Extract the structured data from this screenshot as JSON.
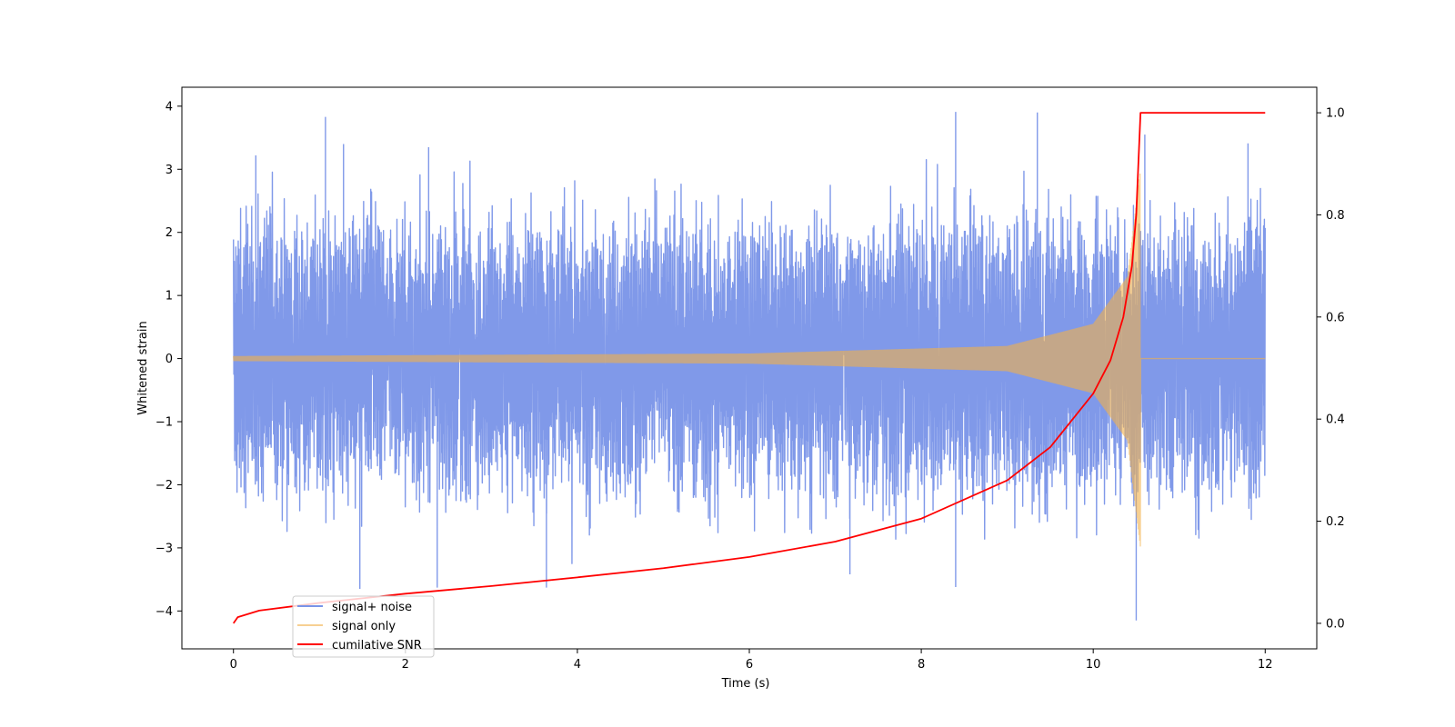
{
  "chart_data": {
    "type": "line",
    "title": "",
    "xlabel": "Time (s)",
    "ylabel": "Whitened strain",
    "ylabel_right": "",
    "xlim": [
      -0.6,
      12.6
    ],
    "ylim": [
      -4.6,
      4.3
    ],
    "ylim_right": [
      -0.05,
      1.05
    ],
    "x_ticks": [
      0,
      2,
      4,
      6,
      8,
      10,
      12
    ],
    "x_tick_labels": [
      "0",
      "2",
      "4",
      "6",
      "8",
      "10",
      "12"
    ],
    "y_ticks": [
      -4,
      -3,
      -2,
      -1,
      0,
      1,
      2,
      3,
      4
    ],
    "y_tick_labels": [
      "−4",
      "−3",
      "−2",
      "−1",
      "0",
      "1",
      "2",
      "3",
      "4"
    ],
    "y_right_ticks": [
      0.0,
      0.2,
      0.4,
      0.6,
      0.8,
      1.0
    ],
    "y_right_tick_labels": [
      "0.0",
      "0.2",
      "0.4",
      "0.6",
      "0.8",
      "1.0"
    ],
    "grid": false,
    "legend_position": "lower-left",
    "series": [
      {
        "name": "signal+ noise",
        "axis": "left",
        "color": "#7994e8",
        "description_values": "dense noise band",
        "x_range": [
          0,
          12
        ],
        "typical_range": [
          -1.6,
          1.9
        ],
        "peaks": [
          {
            "x": 1.07,
            "y": 3.83
          },
          {
            "x": 0.26,
            "y": 3.22
          },
          {
            "x": 1.28,
            "y": 3.4
          },
          {
            "x": 2.27,
            "y": 3.35
          },
          {
            "x": 8.4,
            "y": 3.91
          },
          {
            "x": 9.35,
            "y": 3.9
          },
          {
            "x": 10.6,
            "y": 3.55
          },
          {
            "x": 11.8,
            "y": 3.41
          },
          {
            "x": 1.47,
            "y": -3.65
          },
          {
            "x": 2.37,
            "y": -3.63
          },
          {
            "x": 3.64,
            "y": -3.63
          },
          {
            "x": 7.17,
            "y": -3.42
          },
          {
            "x": 8.4,
            "y": -3.62
          },
          {
            "x": 10.5,
            "y": -4.15
          }
        ]
      },
      {
        "name": "signal only",
        "axis": "left",
        "color": "#f2b04a",
        "x_range": [
          0,
          12
        ],
        "envelope": [
          {
            "x": 0,
            "amp": 0.04
          },
          {
            "x": 6,
            "amp": 0.08
          },
          {
            "x": 9,
            "amp": 0.2
          },
          {
            "x": 10,
            "amp": 0.55
          },
          {
            "x": 10.4,
            "amp": 1.3
          },
          {
            "x": 10.55,
            "amp": 3.0
          }
        ],
        "merger_x": 10.55
      },
      {
        "name": "cumilative SNR",
        "axis": "right",
        "color": "#ff0000",
        "x": [
          0,
          0.05,
          0.3,
          1,
          2,
          3,
          4,
          5,
          6,
          7,
          8,
          9,
          9.5,
          10,
          10.2,
          10.35,
          10.45,
          10.5,
          10.55,
          12
        ],
        "y": [
          0.0,
          0.012,
          0.025,
          0.04,
          0.058,
          0.073,
          0.09,
          0.108,
          0.13,
          0.16,
          0.205,
          0.28,
          0.345,
          0.45,
          0.515,
          0.6,
          0.7,
          0.8,
          1.0,
          1.0
        ]
      }
    ]
  }
}
